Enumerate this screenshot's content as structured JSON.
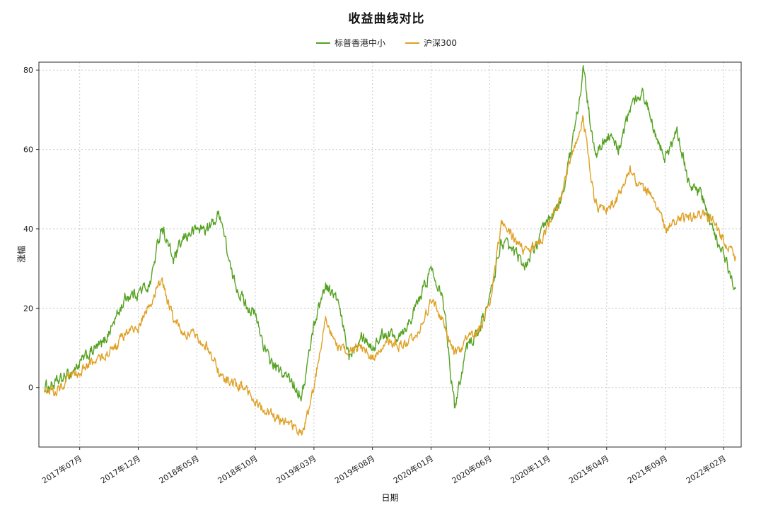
{
  "chart_data": {
    "type": "line",
    "title": "收益曲线对比",
    "xlabel": "日期",
    "ylabel": "涨幅",
    "ylim": [
      -15,
      82
    ],
    "yticks": [
      0,
      20,
      40,
      60,
      80
    ],
    "grid": "dashed",
    "legend_position": "top-center",
    "x": [
      "2017-04",
      "2017-05",
      "2017-06",
      "2017-07",
      "2017-08",
      "2017-09",
      "2017-10",
      "2017-11",
      "2017-12",
      "2018-01",
      "2018-02",
      "2018-03",
      "2018-04",
      "2018-05",
      "2018-06",
      "2018-07",
      "2018-08",
      "2018-09",
      "2018-10",
      "2018-11",
      "2018-12",
      "2019-01",
      "2019-02",
      "2019-03",
      "2019-04",
      "2019-05",
      "2019-06",
      "2019-07",
      "2019-08",
      "2019-09",
      "2019-10",
      "2019-11",
      "2019-12",
      "2020-01",
      "2020-02",
      "2020-03",
      "2020-04",
      "2020-05",
      "2020-06",
      "2020-07",
      "2020-08",
      "2020-09",
      "2020-10",
      "2020-11",
      "2020-12",
      "2021-01",
      "2021-02",
      "2021-03",
      "2021-04",
      "2021-05",
      "2021-06",
      "2021-07",
      "2021-08",
      "2021-09",
      "2021-10",
      "2021-11",
      "2021-12",
      "2022-01",
      "2022-02",
      "2022-03"
    ],
    "xticks": [
      "2017-07",
      "2017-12",
      "2018-05",
      "2018-10",
      "2019-03",
      "2019-08",
      "2020-01",
      "2020-06",
      "2020-11",
      "2021-04",
      "2021-09",
      "2022-02"
    ],
    "xtick_labels": [
      "2017年07月",
      "2017年12月",
      "2018年05月",
      "2018年10月",
      "2019年03月",
      "2019年08月",
      "2020年01月",
      "2020年06月",
      "2020年11月",
      "2021年04月",
      "2021年09月",
      "2022年02月"
    ],
    "series": [
      {
        "name": "标普香港中小",
        "color": "#55a222",
        "values": [
          0,
          1,
          3,
          6,
          9,
          11,
          17,
          23,
          24,
          26,
          41,
          32,
          38,
          40,
          40,
          44,
          28,
          22,
          18,
          8,
          4,
          2,
          -2,
          16,
          26,
          22,
          8,
          14,
          10,
          14,
          13,
          16,
          22,
          30,
          24,
          -5,
          10,
          14,
          22,
          37,
          34,
          31,
          36,
          42,
          46,
          60,
          80,
          58,
          64,
          60,
          70,
          75,
          66,
          58,
          64,
          52,
          49,
          40,
          33,
          25
        ]
      },
      {
        "name": "沪深300",
        "color": "#dfa126",
        "values": [
          0,
          -1,
          2,
          4,
          6,
          8,
          10,
          14,
          15,
          21,
          27,
          17,
          14,
          13,
          10,
          3,
          1,
          0,
          -4,
          -6,
          -8,
          -9,
          -12,
          0,
          18,
          10,
          8,
          11,
          7,
          11,
          11,
          10,
          14,
          22,
          17,
          8,
          12,
          14,
          20,
          41,
          38,
          34,
          36,
          40,
          47,
          58,
          68,
          46,
          45,
          48,
          55,
          50,
          48,
          40,
          42,
          43,
          44,
          42,
          37,
          33
        ]
      }
    ]
  }
}
